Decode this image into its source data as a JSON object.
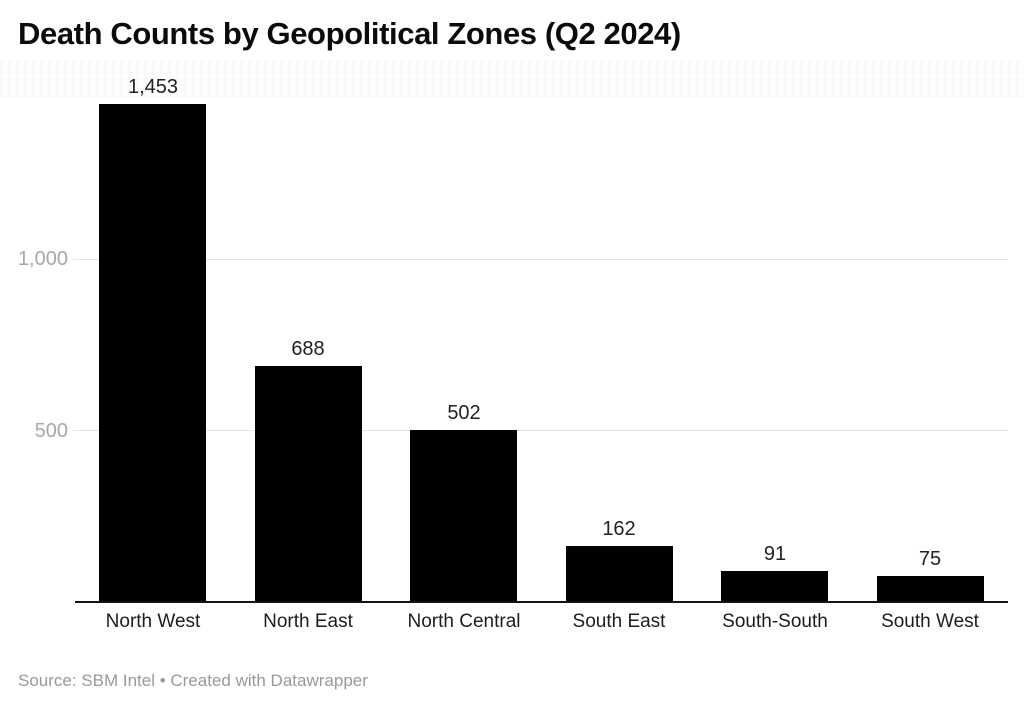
{
  "title": "Death Counts by Geopolitical Zones (Q2 2024)",
  "footer": {
    "text": "Source: SBM Intel • Created with Datawrapper"
  },
  "chart_data": {
    "type": "bar",
    "title": "Death Counts by Geopolitical Zones (Q2 2024)",
    "categories": [
      "North West",
      "North East",
      "North Central",
      "South East",
      "South-South",
      "South West"
    ],
    "values": [
      1453,
      688,
      502,
      162,
      91,
      75
    ],
    "value_labels": [
      "1,453",
      "688",
      "502",
      "162",
      "91",
      "75"
    ],
    "xlabel": "",
    "ylabel": "",
    "ylim": [
      0,
      1500
    ],
    "yticks": [
      {
        "value": 500,
        "label": "500"
      },
      {
        "value": 1000,
        "label": "1,000"
      }
    ],
    "grid": "horizontal",
    "legend": "none",
    "bar_color": "#000000",
    "source": "Source: SBM Intel • Created with Datawrapper"
  },
  "colors": {
    "bar": "#000000",
    "gridline": "#e4e4e4",
    "tick_label": "#a8a8a8",
    "baseline": "#141414",
    "category_label": "#1d1d1d",
    "value_label": "#222222",
    "footer_text": "#999999",
    "title": "#0b0b0b",
    "background": "#ffffff"
  }
}
